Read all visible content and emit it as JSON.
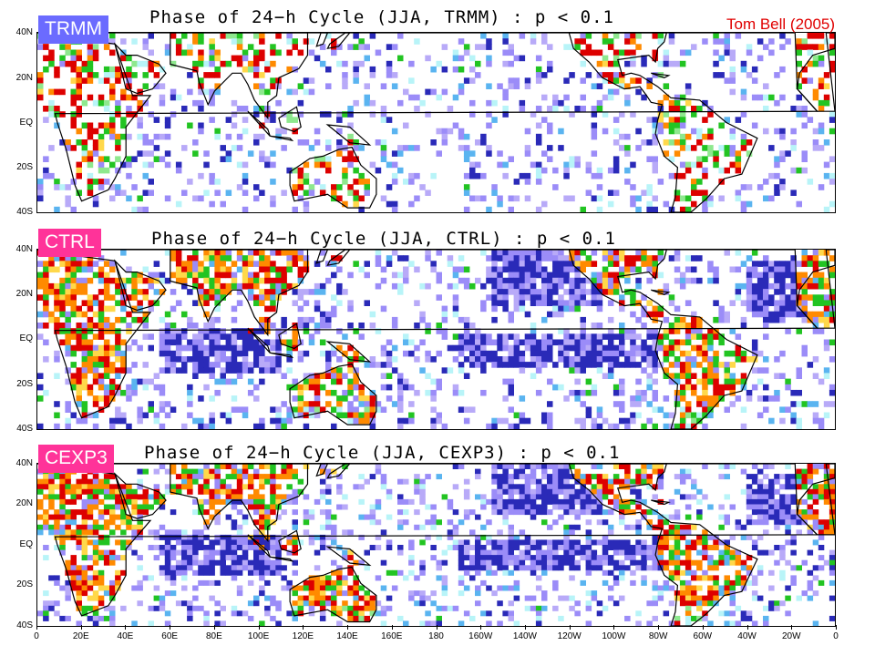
{
  "credit": "Tom Bell (2005)",
  "lat_labels": [
    "40N",
    "20N",
    "EQ",
    "20S",
    "40S"
  ],
  "lon_labels": [
    "0",
    "20E",
    "40E",
    "60E",
    "80E",
    "100E",
    "120E",
    "140E",
    "160E",
    "180",
    "160W",
    "140W",
    "120W",
    "100W",
    "80W",
    "60W",
    "40W",
    "20W",
    "0"
  ],
  "panels": [
    {
      "badge": "TRMM",
      "badge_color": "#6b6bff",
      "title": "Phase of 24−h Cycle (JJA, TRMM) : p < 0.1"
    },
    {
      "badge": "CTRL",
      "badge_color": "#ff3399",
      "title": "Phase of 24−h Cycle (JJA, CTRL) : p < 0.1"
    },
    {
      "badge": "CEXP3",
      "badge_color": "#ff3399",
      "title": "Phase of 24−h Cycle (JJA, CEXP3) : p < 0.1"
    }
  ],
  "phase_colors": {
    "red": "#dd0000",
    "orange": "#ff8a00",
    "yellow": "#ffd84a",
    "green": "#22c422",
    "light_green": "#8ee88e",
    "cyan": "#b8f4f8",
    "sky_blue": "#5ab4f0",
    "lavender": "#9b8cf8",
    "light_lavender": "#b8aaf8",
    "navy": "#2a2ab8"
  },
  "lon_range": [
    0,
    360
  ],
  "lat_range": [
    -40,
    40
  ]
}
